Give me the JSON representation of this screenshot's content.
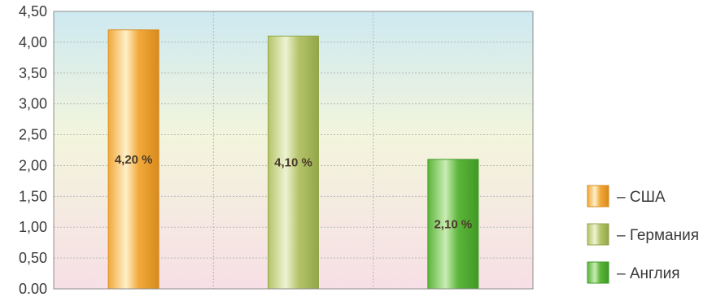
{
  "chart_data": {
    "type": "bar",
    "title": "",
    "xlabel": "",
    "ylabel": "",
    "categories": [
      "США",
      "Германия",
      "Англия"
    ],
    "values": [
      4.2,
      4.1,
      2.1
    ],
    "data_labels": [
      "4,20 %",
      "4,10 %",
      "2,10 %"
    ],
    "ylim": [
      0,
      4.5
    ],
    "yticks": [
      0,
      0.5,
      1.0,
      1.5,
      2.0,
      2.5,
      3.0,
      3.5,
      4.0,
      4.5
    ],
    "ytick_labels": [
      "0.00",
      "0,50",
      "1,00",
      "1,50",
      "2,00",
      "2,50",
      "3,00",
      "3,50",
      "4,00",
      "4,50"
    ],
    "grid": true,
    "legend": {
      "placement": "right",
      "entries": [
        "– США",
        "– Германия",
        "– Англия"
      ]
    },
    "colors": {
      "bars": [
        "#f2a93b",
        "#b5c46a",
        "#5cb53a"
      ],
      "bar_highlights": [
        "#fdf0c9",
        "#eef3d2",
        "#c9ecb4"
      ],
      "bar_edges": [
        "#d98a1c",
        "#93a649",
        "#3f9a25"
      ],
      "background_top": "#cde9f1",
      "background_bottom": "#f7dfe6"
    }
  }
}
